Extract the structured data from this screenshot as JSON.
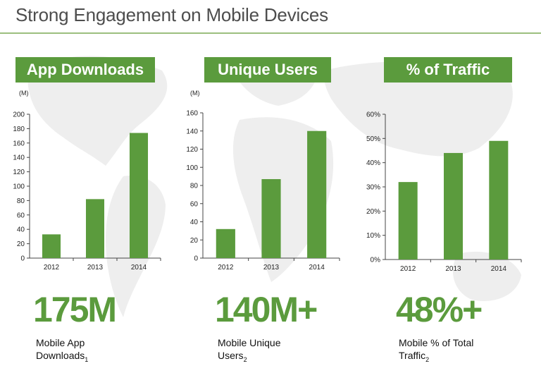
{
  "title": "Strong Engagement on Mobile Devices",
  "colors": {
    "accent": "#5b9b3d",
    "bar": "#5b9b3d",
    "rule": "#9cbf7e"
  },
  "panels": [
    {
      "header": "App Downloads",
      "big_number": "175M",
      "desc_line1": "Mobile App",
      "desc_line2": "Downloads",
      "footnote": "1"
    },
    {
      "header": "Unique Users",
      "big_number": "140M+",
      "desc_line1": "Mobile Unique",
      "desc_line2": "Users",
      "footnote": "2"
    },
    {
      "header": "% of Traffic",
      "big_number": "48%+",
      "desc_line1": "Mobile % of Total",
      "desc_line2": "Traffic",
      "footnote": "2"
    }
  ],
  "chart_data": [
    {
      "type": "bar",
      "title": "App Downloads",
      "unit_label": "(M)",
      "categories": [
        "2012",
        "2013",
        "2014"
      ],
      "values": [
        33,
        82,
        174
      ],
      "ylim": [
        0,
        200
      ],
      "yticks": [
        0,
        20,
        40,
        60,
        80,
        100,
        120,
        140,
        160,
        180,
        200
      ],
      "ytick_labels": [
        "0",
        "20",
        "40",
        "60",
        "80",
        "100",
        "120",
        "140",
        "160",
        "180",
        "200"
      ]
    },
    {
      "type": "bar",
      "title": "Unique Users",
      "unit_label": "(M)",
      "categories": [
        "2012",
        "2013",
        "2014"
      ],
      "values": [
        32,
        87,
        140
      ],
      "ylim": [
        0,
        160
      ],
      "yticks": [
        0,
        20,
        40,
        60,
        80,
        100,
        120,
        140,
        160
      ],
      "ytick_labels": [
        "0",
        "20",
        "40",
        "60",
        "80",
        "100",
        "120",
        "140",
        "160"
      ]
    },
    {
      "type": "bar",
      "title": "% of Traffic",
      "unit_label": "",
      "categories": [
        "2012",
        "2013",
        "2014"
      ],
      "values": [
        0.32,
        0.44,
        0.49
      ],
      "ylim": [
        0,
        0.6
      ],
      "yticks": [
        0,
        0.1,
        0.2,
        0.3,
        0.4,
        0.5,
        0.6
      ],
      "ytick_labels": [
        "0%",
        "10%",
        "20%",
        "30%",
        "40%",
        "50%",
        "60%"
      ]
    }
  ]
}
